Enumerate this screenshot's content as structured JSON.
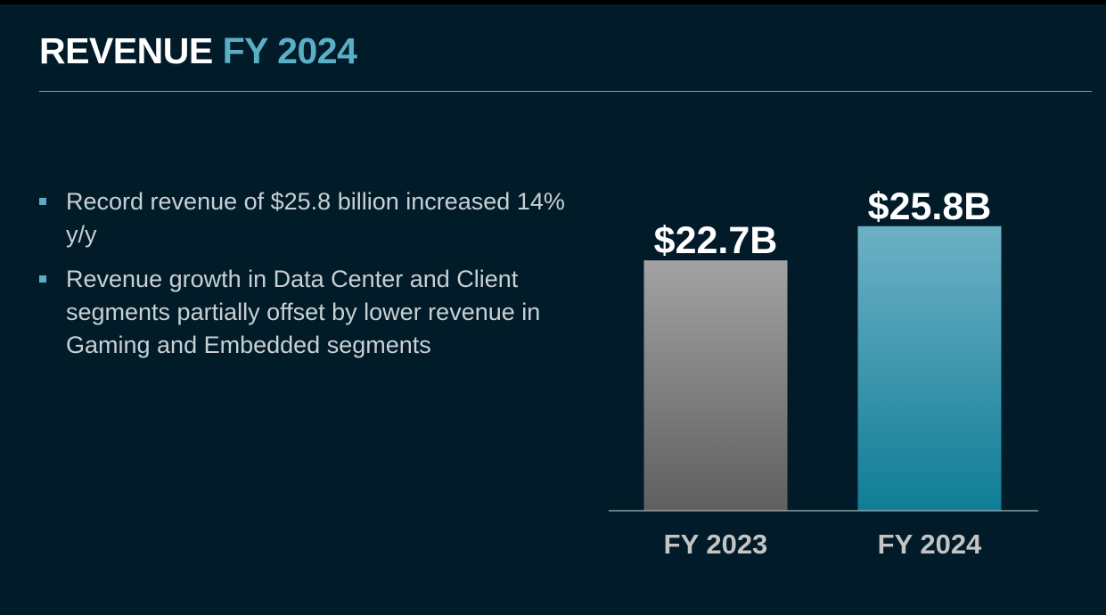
{
  "header": {
    "title_main": "REVENUE",
    "title_accent": "FY 2024"
  },
  "bullets": [
    "Record revenue of $25.8 billion increased 14% y/y",
    "Revenue growth in Data Center and Client segments partially offset by lower revenue in Gaming and Embedded segments"
  ],
  "colors": {
    "background": "#011b29",
    "accent": "#5aaec6",
    "fy2023_bar": "#8c8c8c",
    "fy2024_bar": "#3d96ae"
  },
  "chart_data": {
    "type": "bar",
    "categories": [
      "FY 2023",
      "FY 2024"
    ],
    "values": [
      22.7,
      25.8
    ],
    "data_labels": [
      "$22.7B",
      "$25.8B"
    ],
    "title": "",
    "xlabel": "",
    "ylabel": "",
    "ylim": [
      0,
      29.5
    ],
    "grid": false
  }
}
